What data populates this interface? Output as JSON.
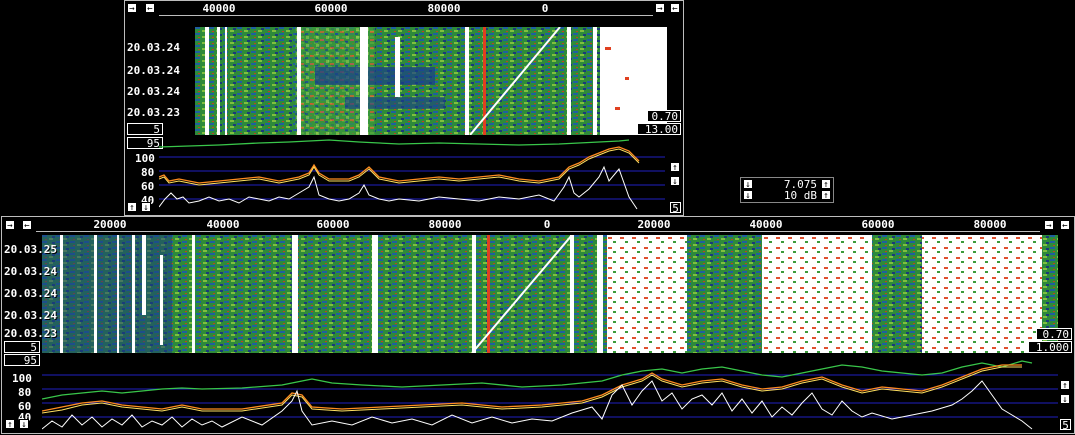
{
  "top": {
    "scale_labels": [
      "40000",
      "60000",
      "80000",
      "0"
    ],
    "dates": [
      "20.03.24",
      "20.03.24",
      "20.03.24",
      "20.03.23"
    ],
    "avg_box": "5",
    "gain_box": "0.70",
    "bw_box": "13.00",
    "spec_max_box": "95",
    "spec_axis": [
      "100",
      "80",
      "60",
      "40"
    ],
    "spec_avg_box": "5"
  },
  "bottom": {
    "scale_labels": [
      "20000",
      "40000",
      "60000",
      "80000",
      "0",
      "20000",
      "40000",
      "60000",
      "80000"
    ],
    "dates": [
      "20.03.25",
      "20.03.24",
      "20.03.24",
      "20.03.24",
      "20.03.23"
    ],
    "avg_box": "5",
    "gain_box": "0.70",
    "bw_box": "1.000",
    "spec_max_box": "95",
    "spec_axis": [
      "100",
      "80",
      "60",
      "40"
    ],
    "spec_avg_box": "5"
  },
  "control": {
    "level_value": "7.075",
    "range_value": "10 dB"
  },
  "icons": {
    "left": "←",
    "right": "→",
    "up": "↑",
    "down": "↓"
  },
  "colors": {
    "background": "#000000",
    "border": "#bdbdbd",
    "green": "#39c64a",
    "orange": "#ff8c20",
    "yellow": "#ffe060",
    "white": "#ffffff",
    "grid": "#2020c0"
  }
}
